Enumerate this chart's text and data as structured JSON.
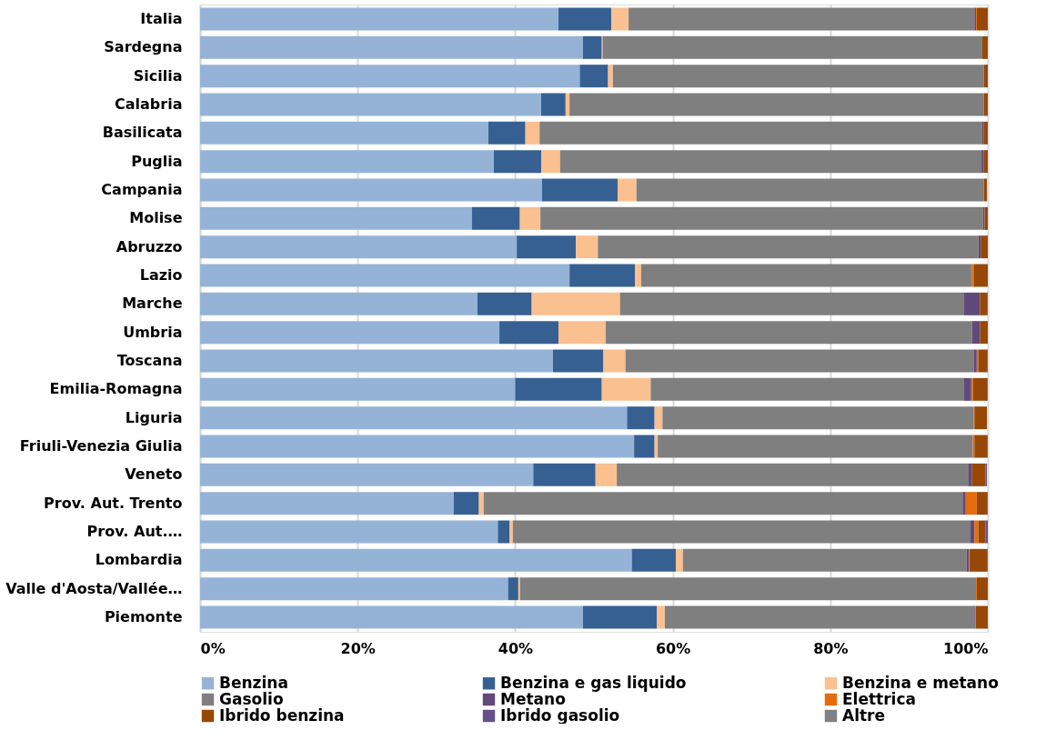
{
  "chart_data": {
    "type": "bar",
    "orientation": "horizontal",
    "stacked": true,
    "categories": [
      "Italia",
      "Sardegna",
      "Sicilia",
      "Calabria",
      "Basilicata",
      "Puglia",
      "Campania",
      "Molise",
      "Abruzzo",
      "Lazio",
      "Marche",
      "Umbria",
      "Toscana",
      "Emilia-Romagna",
      "Liguria",
      "Friuli-Venezia Giulia",
      "Veneto",
      "Prov. Aut. Trento",
      "Prov. Aut.…",
      "Lombardia",
      "Valle d'Aosta/Vallée…",
      "Piemonte"
    ],
    "series": [
      {
        "name": "Benzina",
        "color": "#95b3d7",
        "values": [
          45.5,
          48.6,
          48.2,
          43.3,
          36.6,
          37.3,
          43.4,
          34.5,
          40.2,
          46.9,
          35.2,
          38.0,
          44.8,
          40.0,
          54.2,
          55.1,
          42.3,
          32.2,
          37.8,
          54.8,
          39.1,
          48.6
        ]
      },
      {
        "name": "Benzina e gas liquido",
        "color": "#376092",
        "values": [
          6.7,
          2.4,
          3.6,
          3.1,
          4.7,
          6.0,
          9.6,
          6.1,
          7.5,
          8.3,
          6.9,
          7.5,
          6.4,
          11.0,
          3.5,
          2.6,
          7.9,
          3.2,
          1.5,
          5.6,
          1.3,
          9.4
        ]
      },
      {
        "name": "Benzina e metano",
        "color": "#fac090",
        "values": [
          2.2,
          0.1,
          0.6,
          0.5,
          1.8,
          2.4,
          2.4,
          2.6,
          2.8,
          0.8,
          11.2,
          6.0,
          2.8,
          6.2,
          1.0,
          0.4,
          2.7,
          0.6,
          0.4,
          0.9,
          0.2,
          1.0
        ]
      },
      {
        "name": "Gasolio",
        "color": "#7f7f7f",
        "values": [
          43.9,
          48.2,
          47.1,
          52.6,
          56.2,
          53.5,
          44.1,
          56.2,
          48.3,
          42.0,
          43.7,
          46.5,
          44.2,
          39.8,
          39.5,
          40.0,
          44.6,
          60.8,
          58.1,
          36.0,
          57.9,
          39.3
        ]
      },
      {
        "name": "Metano",
        "color": "#604a7b",
        "values": [
          0.2,
          0,
          0,
          0,
          0.2,
          0.3,
          null,
          0.2,
          0.3,
          0,
          2.0,
          1.0,
          0.4,
          0.9,
          null,
          0,
          0.5,
          0.4,
          0.5,
          0.3,
          0,
          0.1
        ]
      },
      {
        "name": "Elettrica",
        "color": "#e46c0a",
        "values": [
          0.1,
          0,
          0,
          0,
          0,
          0,
          0,
          0,
          0,
          0.2,
          0,
          0,
          0.2,
          0.2,
          0.1,
          0.2,
          null,
          1.4,
          0.5,
          0.1,
          0.1,
          0.1
        ]
      },
      {
        "name": "Ibrido benzina",
        "color": "#974806",
        "values": [
          1.4,
          0.7,
          0.5,
          0.5,
          0.5,
          0.5,
          0.4,
          0.4,
          0.9,
          1.8,
          0.9,
          1.0,
          1.1,
          1.8,
          1.6,
          1.6,
          1.7,
          1.3,
          0.9,
          2.2,
          1.4,
          1.5
        ]
      },
      {
        "name": "Ibrido gasolio",
        "color": "#65508a",
        "values": [
          0,
          0,
          0,
          0,
          0,
          0,
          0,
          0,
          0,
          0,
          0.1,
          0,
          0.1,
          0.1,
          0,
          0.1,
          0.2,
          0.1,
          0.3,
          0.1,
          0,
          0
        ]
      },
      {
        "name": "Altre",
        "color": "#808080",
        "values": [
          0,
          0,
          0,
          0,
          0,
          0,
          0,
          0,
          0,
          0,
          0,
          0,
          0,
          0,
          0,
          0,
          0,
          0,
          0,
          0,
          0,
          0
        ]
      }
    ],
    "xlim": [
      0,
      100
    ],
    "xticks": [
      {
        "value": 0,
        "label": "0%"
      },
      {
        "value": 20,
        "label": "20%"
      },
      {
        "value": 40,
        "label": "40%"
      },
      {
        "value": 60,
        "label": "60%"
      },
      {
        "value": 80,
        "label": "80%"
      },
      {
        "value": 100,
        "label": "100%"
      }
    ],
    "grid": "x",
    "legend": "bottom"
  }
}
